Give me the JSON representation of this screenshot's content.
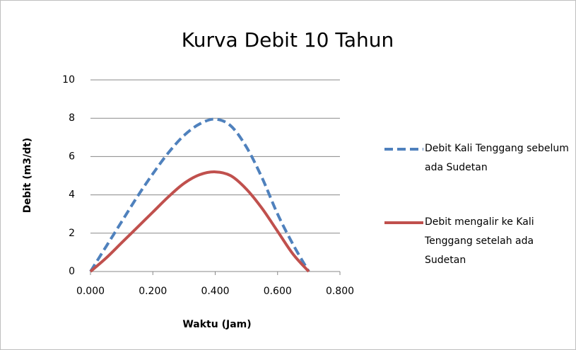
{
  "chart_data": {
    "type": "line",
    "title": "Kurva Debit 10 Tahun",
    "x_label": "Waktu (Jam)",
    "y_label": "Debit (m3/dt)",
    "x": [
      0,
      0.05,
      0.1,
      0.15,
      0.2,
      0.25,
      0.3,
      0.35,
      0.4,
      0.45,
      0.5,
      0.55,
      0.6,
      0.65,
      0.7
    ],
    "series": [
      {
        "name": "Debit Kali Tenggang sebelum ada Sudetan",
        "color": "#4f81bd",
        "dashed": true,
        "values": [
          0,
          1.3,
          2.6,
          3.9,
          5.1,
          6.2,
          7.1,
          7.7,
          7.95,
          7.6,
          6.5,
          4.9,
          3.0,
          1.4,
          0
        ]
      },
      {
        "name": "Debit mengalir ke Kali Tenggang setelah ada Sudetan",
        "color": "#c0504d",
        "dashed": false,
        "values": [
          0,
          0.7,
          1.5,
          2.3,
          3.1,
          3.9,
          4.6,
          5.05,
          5.2,
          5.0,
          4.3,
          3.3,
          2.1,
          0.9,
          0
        ]
      }
    ],
    "xlim": [
      0,
      0.8
    ],
    "xticks": [
      {
        "value": 0,
        "label": "0.000"
      },
      {
        "value": 0.2,
        "label": "0.200"
      },
      {
        "value": 0.4,
        "label": "0.400"
      },
      {
        "value": 0.6,
        "label": "0.600"
      },
      {
        "value": 0.8,
        "label": "0.800"
      }
    ],
    "ylim": [
      0,
      10
    ],
    "yticks": [
      0,
      2,
      4,
      6,
      8,
      10
    ],
    "grid": true,
    "legend": "right"
  }
}
